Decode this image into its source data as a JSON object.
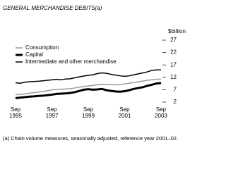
{
  "chart_data": {
    "type": "line",
    "title": "GENERAL MERCHANDISE DEBITS(a)",
    "y_axis_label": "$billion",
    "footnote": "(a) Chain volume measures, seasonally adjusted, reference year 2001–02.",
    "categories": [
      "Sep 1995",
      null,
      null,
      null,
      null,
      null,
      null,
      null,
      "Sep 1997",
      null,
      null,
      null,
      null,
      null,
      null,
      null,
      "Sep 1999",
      null,
      null,
      null,
      null,
      null,
      null,
      null,
      "Sep 2001",
      null,
      null,
      null,
      null,
      null,
      null,
      null,
      "Sep 2003"
    ],
    "ylim": [
      2,
      27
    ],
    "yticks": [
      2,
      7,
      12,
      17,
      22,
      27
    ],
    "legend": "top-left",
    "series": [
      {
        "name": "Consumption",
        "color": "#999999",
        "width": 1.5,
        "values": [
          5.0,
          5.1,
          5.3,
          5.6,
          5.8,
          6.0,
          6.3,
          6.6,
          6.9,
          7.2,
          7.2,
          7.3,
          7.4,
          7.7,
          8.0,
          8.3,
          8.5,
          8.7,
          9.0,
          9.2,
          9.1,
          9.0,
          9.0,
          9.1,
          9.3,
          9.6,
          9.9,
          10.2,
          10.5,
          10.8,
          11.0,
          11.2,
          11.3
        ]
      },
      {
        "name": "Capital",
        "color": "#000000",
        "width": 3,
        "values": [
          3.6,
          3.8,
          4.0,
          4.2,
          4.3,
          4.5,
          4.6,
          4.8,
          5.0,
          5.3,
          5.4,
          5.5,
          5.7,
          6.0,
          6.5,
          7.0,
          7.2,
          7.0,
          7.1,
          7.3,
          6.8,
          6.5,
          6.3,
          6.2,
          6.4,
          6.8,
          7.3,
          7.7,
          8.0,
          8.6,
          9.0,
          9.5,
          9.7
        ]
      },
      {
        "name": "Intermediate and other merchandise",
        "color": "#000000",
        "width": 1.5,
        "values": [
          9.8,
          9.6,
          10.0,
          10.2,
          10.3,
          10.4,
          10.6,
          10.8,
          11.0,
          11.2,
          11.0,
          11.3,
          11.4,
          11.8,
          12.2,
          12.5,
          12.8,
          13.0,
          13.5,
          13.8,
          13.6,
          13.2,
          12.9,
          12.6,
          12.4,
          12.6,
          13.0,
          13.4,
          13.8,
          14.2,
          14.8,
          15.0,
          15.0
        ]
      }
    ]
  }
}
